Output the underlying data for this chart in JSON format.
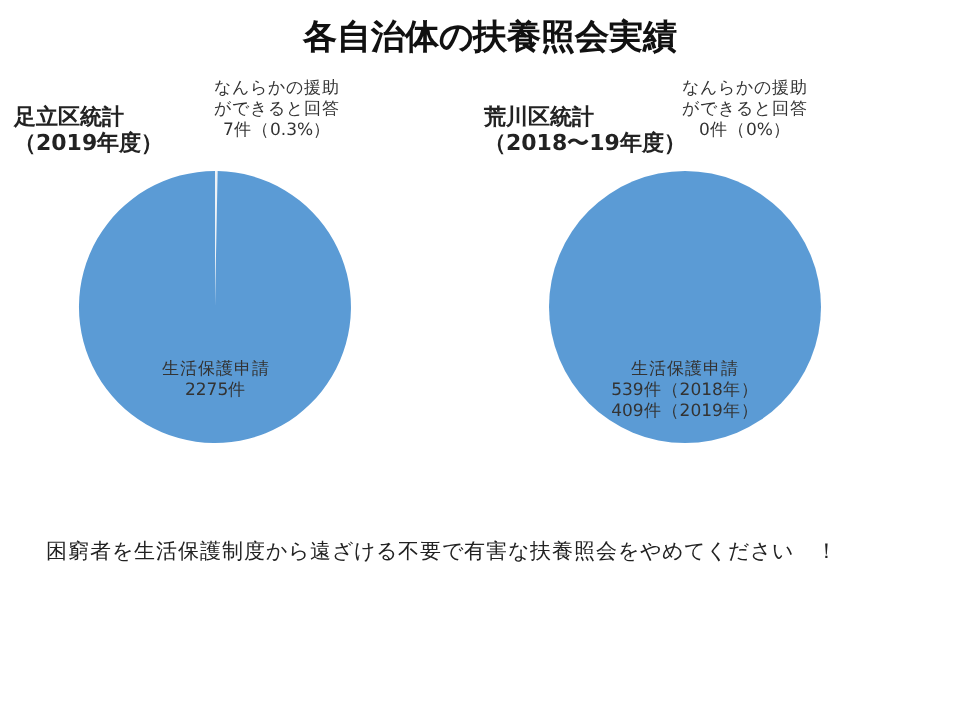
{
  "chart_data": [
    {
      "type": "other",
      "title": "各自治体の扶養照会実績"
    },
    {
      "type": "pie",
      "title": "足立区統計（2019年度）",
      "categories": [
        "なんらかの援助ができると回答",
        "生活保護申請"
      ],
      "values": [
        7,
        2275
      ],
      "value_labels": [
        "7件（0.3%）",
        "2275件"
      ],
      "colors": [
        "#eef2f6",
        "#5b9bd5"
      ],
      "legend": false
    },
    {
      "type": "pie",
      "title": "荒川区統計（2018〜19年度）",
      "categories": [
        "なんらかの援助ができると回答",
        "生活保護申請"
      ],
      "values": [
        0,
        100
      ],
      "value_labels": [
        "0件（0%）",
        null
      ],
      "annotations": [
        "539件（2018年）\n409件（2019年）"
      ],
      "colors": [
        "#eef2f6",
        "#5b9bd5"
      ],
      "legend": false
    },
    {
      "type": "other",
      "annotations": [
        "困窮者を生活保護制度から遠ざける不要で有害な扶養照会をやめてください　！"
      ]
    }
  ]
}
